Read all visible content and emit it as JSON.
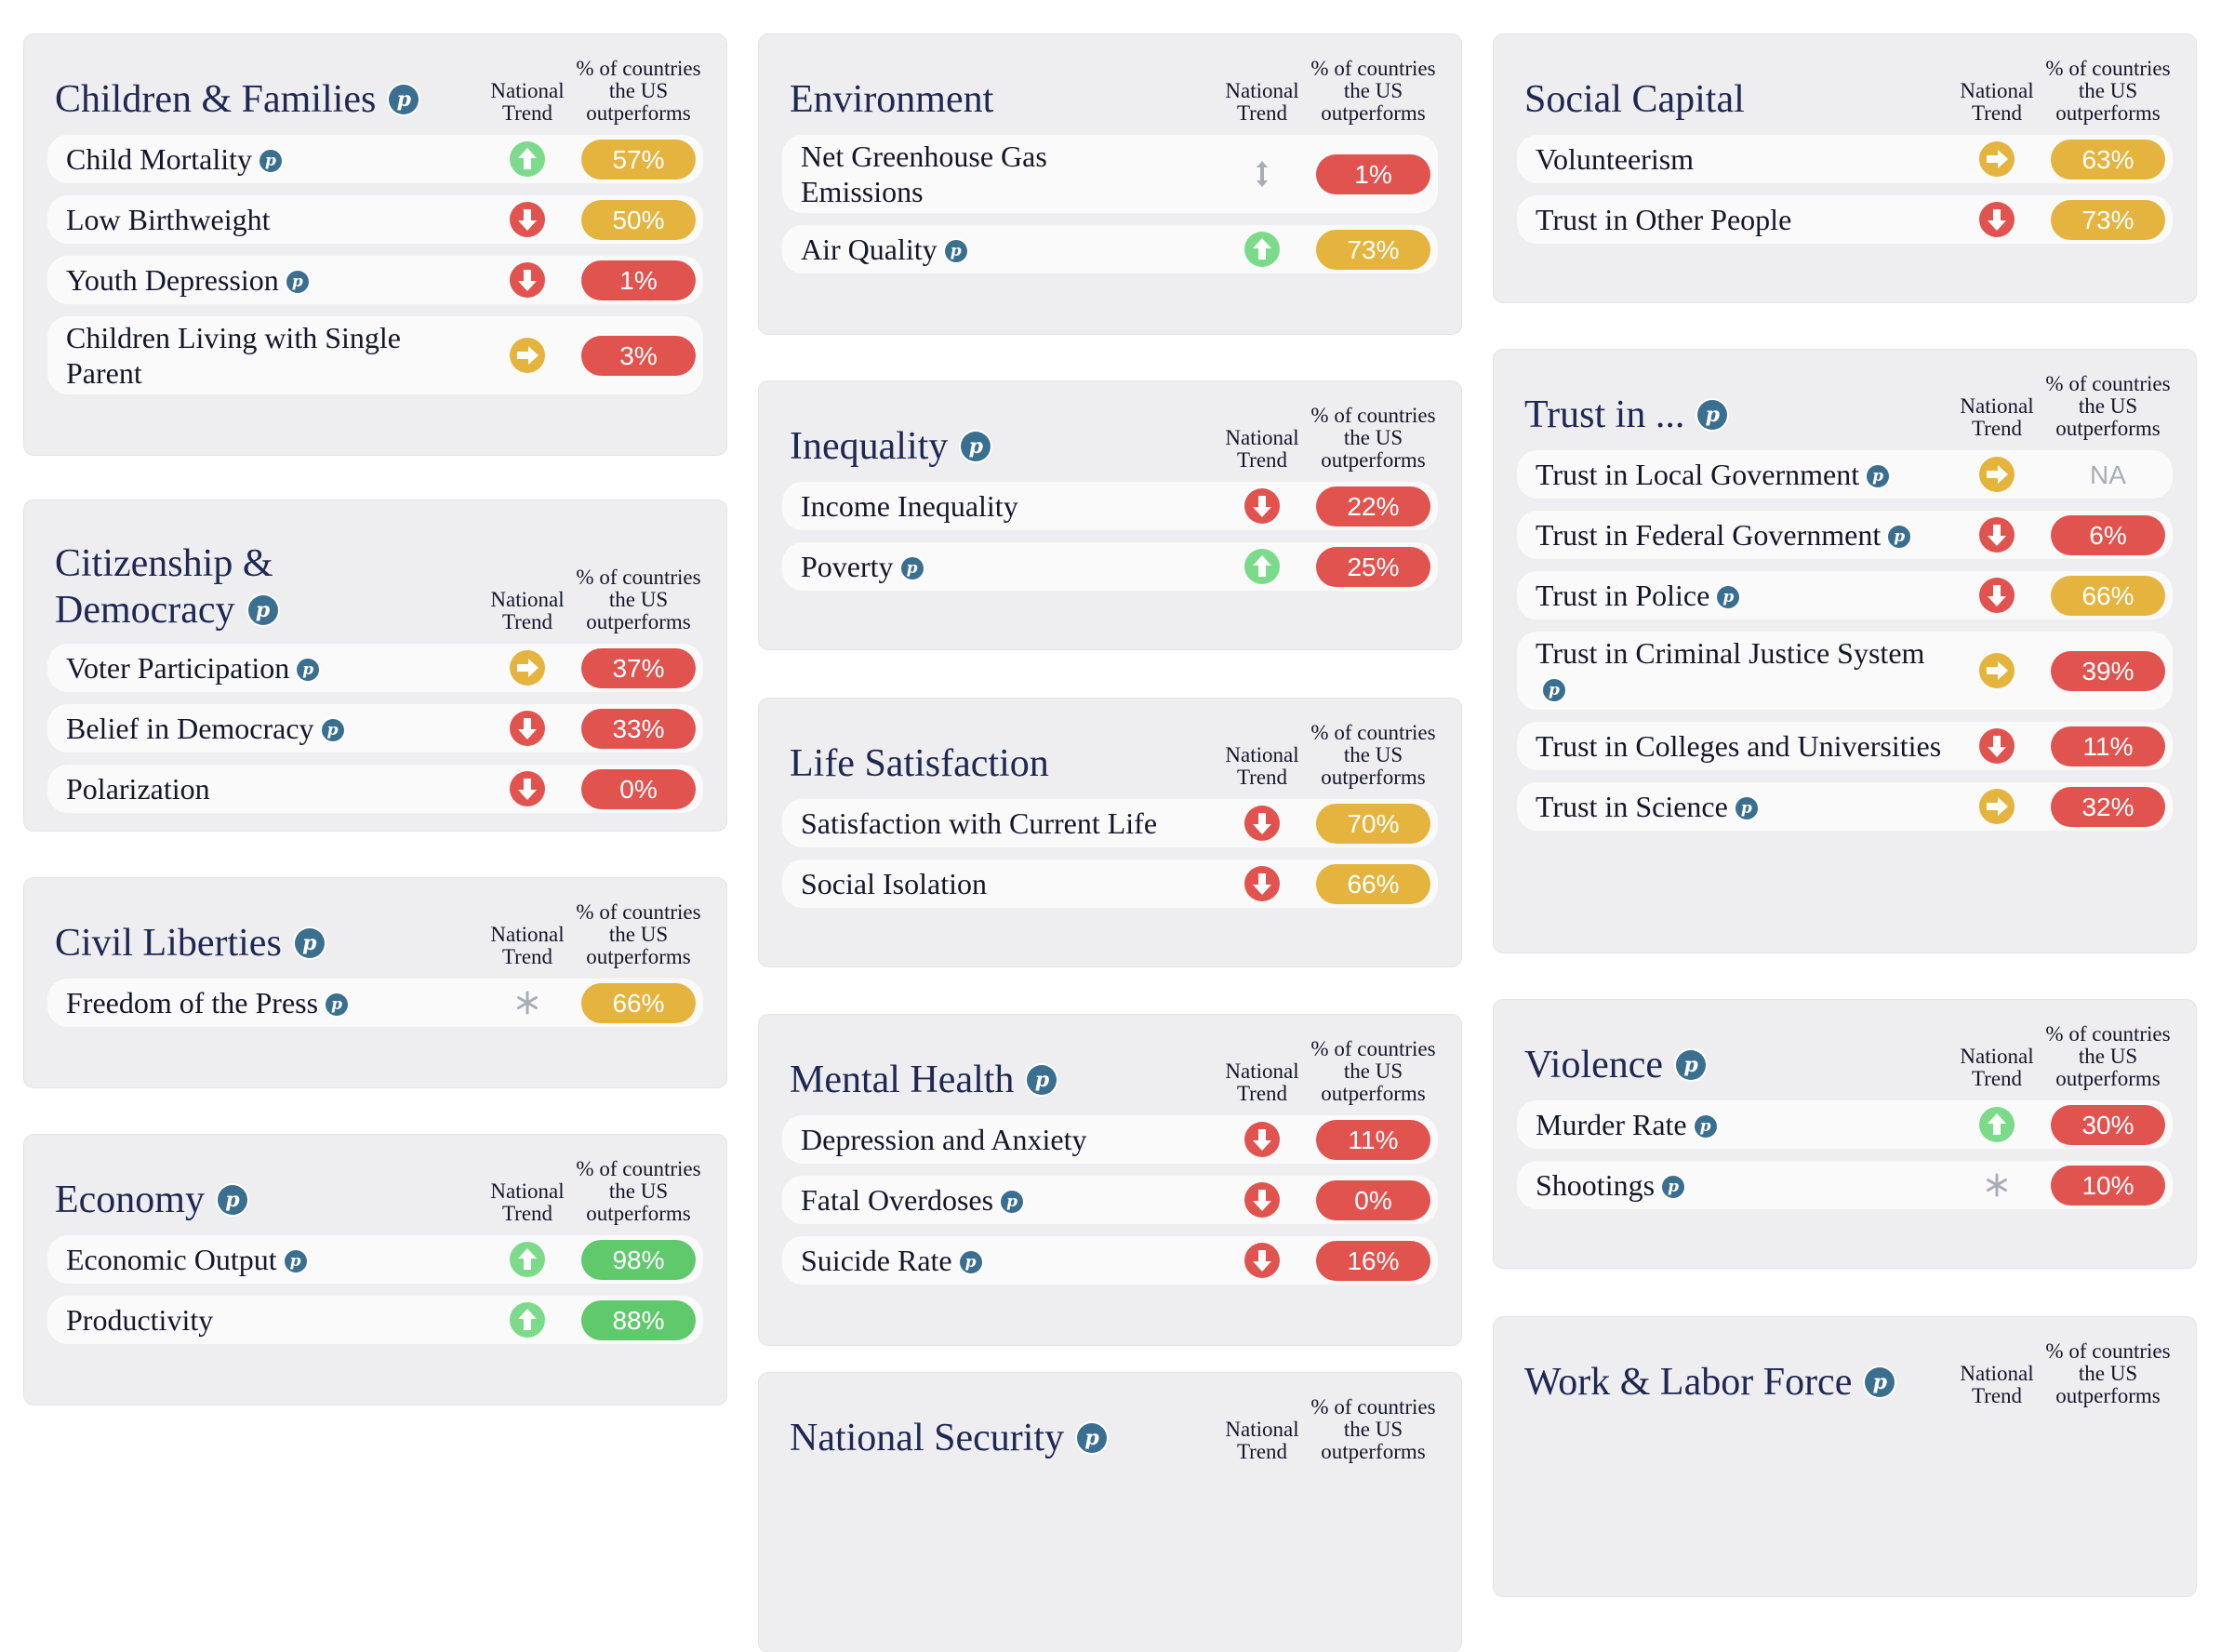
{
  "colors": {
    "red": "#e0534f",
    "yellow": "#e4b43f",
    "green": "#5fc96c",
    "trend_up": "#7bdb8b",
    "trend_down": "#e0534f",
    "trend_flat": "#e4b43f",
    "muted": "#a9adb5",
    "info": "#3a6f8f"
  },
  "headers": {
    "trend": "National Trend",
    "pct": "% of countries the US outperforms"
  },
  "cards": [
    {
      "id": "children",
      "title": "Children & Families",
      "info": true,
      "rows": [
        {
          "name": "Child Mortality",
          "info": true,
          "trend": "up",
          "value": "57%",
          "level": "yellow"
        },
        {
          "name": "Low Birthweight",
          "info": false,
          "trend": "down",
          "value": "50%",
          "level": "yellow"
        },
        {
          "name": "Youth Depression",
          "info": true,
          "trend": "down",
          "value": "1%",
          "level": "red"
        },
        {
          "name": "Children Living with Single Parent",
          "info": false,
          "trend": "right",
          "value": "3%",
          "level": "red"
        }
      ]
    },
    {
      "id": "citizenship",
      "title": "Citizenship & Democracy",
      "info": true,
      "rows": [
        {
          "name": "Voter Participation",
          "info": true,
          "trend": "right",
          "value": "37%",
          "level": "red"
        },
        {
          "name": "Belief in Democracy",
          "info": true,
          "trend": "down",
          "value": "33%",
          "level": "red"
        },
        {
          "name": "Polarization",
          "info": false,
          "trend": "down",
          "value": "0%",
          "level": "red"
        }
      ]
    },
    {
      "id": "civil",
      "title": "Civil Liberties",
      "info": true,
      "rows": [
        {
          "name": "Freedom of the Press",
          "info": true,
          "trend": "asterisk",
          "value": "66%",
          "level": "yellow"
        }
      ]
    },
    {
      "id": "economy",
      "title": "Economy",
      "info": true,
      "rows": [
        {
          "name": "Economic Output",
          "info": true,
          "trend": "up",
          "value": "98%",
          "level": "green"
        },
        {
          "name": "Productivity",
          "info": false,
          "trend": "up",
          "value": "88%",
          "level": "green"
        }
      ]
    },
    {
      "id": "environment",
      "title": "Environment",
      "info": false,
      "rows": [
        {
          "name": "Net Greenhouse Gas Emissions",
          "info": false,
          "trend": "updown",
          "value": "1%",
          "level": "red"
        },
        {
          "name": "Air Quality",
          "info": true,
          "trend": "up",
          "value": "73%",
          "level": "yellow"
        }
      ]
    },
    {
      "id": "inequality",
      "title": "Inequality",
      "info": true,
      "rows": [
        {
          "name": "Income Inequality",
          "info": false,
          "trend": "down",
          "value": "22%",
          "level": "red"
        },
        {
          "name": "Poverty",
          "info": true,
          "trend": "up",
          "value": "25%",
          "level": "red"
        }
      ]
    },
    {
      "id": "life",
      "title": "Life Satisfaction",
      "info": false,
      "rows": [
        {
          "name": "Satisfaction with Current Life",
          "info": false,
          "trend": "down",
          "value": "70%",
          "level": "yellow"
        },
        {
          "name": "Social Isolation",
          "info": false,
          "trend": "down",
          "value": "66%",
          "level": "yellow"
        }
      ]
    },
    {
      "id": "mental",
      "title": "Mental Health",
      "info": true,
      "rows": [
        {
          "name": "Depression and Anxiety",
          "info": false,
          "trend": "down",
          "value": "11%",
          "level": "red"
        },
        {
          "name": "Fatal Overdoses",
          "info": true,
          "trend": "down",
          "value": "0%",
          "level": "red"
        },
        {
          "name": "Suicide Rate",
          "info": true,
          "trend": "down",
          "value": "16%",
          "level": "red"
        }
      ]
    },
    {
      "id": "security",
      "title": "National Security",
      "info": true,
      "rows": []
    },
    {
      "id": "social",
      "title": "Social Capital",
      "info": false,
      "rows": [
        {
          "name": "Volunteerism",
          "info": false,
          "trend": "right",
          "value": "63%",
          "level": "yellow"
        },
        {
          "name": "Trust in Other People",
          "info": false,
          "trend": "down",
          "value": "73%",
          "level": "yellow"
        }
      ]
    },
    {
      "id": "trust",
      "title": "Trust in ...",
      "info": true,
      "rows": [
        {
          "name": "Trust in Local Government",
          "info": true,
          "trend": "right",
          "value": "NA",
          "level": "na"
        },
        {
          "name": "Trust in Federal Government",
          "info": true,
          "trend": "down",
          "value": "6%",
          "level": "red"
        },
        {
          "name": "Trust in Police",
          "info": true,
          "trend": "down",
          "value": "66%",
          "level": "yellow"
        },
        {
          "name": "Trust in Criminal Justice System",
          "info": true,
          "trend": "right",
          "value": "39%",
          "level": "red"
        },
        {
          "name": "Trust in Colleges and Universities",
          "info": false,
          "trend": "down",
          "value": "11%",
          "level": "red"
        },
        {
          "name": "Trust in Science",
          "info": true,
          "trend": "right",
          "value": "32%",
          "level": "red"
        }
      ]
    },
    {
      "id": "violence",
      "title": "Violence",
      "info": true,
      "rows": [
        {
          "name": "Murder Rate",
          "info": true,
          "trend": "up",
          "value": "30%",
          "level": "red"
        },
        {
          "name": "Shootings",
          "info": true,
          "trend": "asterisk",
          "value": "10%",
          "level": "red"
        }
      ]
    },
    {
      "id": "work",
      "title": "Work & Labor Force",
      "info": true,
      "rows": []
    }
  ],
  "info_glyph": "p"
}
